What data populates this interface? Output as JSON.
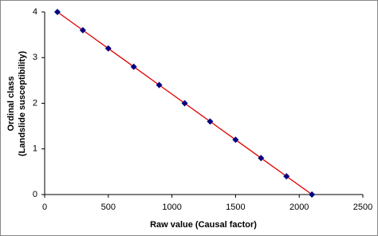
{
  "chart_data": {
    "type": "line",
    "x_label": "Raw value (Causal factor)",
    "y_label": [
      "Ordinal class",
      "(Landslide susceptibility)"
    ],
    "x": [
      100,
      300,
      500,
      700,
      900,
      1100,
      1300,
      1500,
      1700,
      1900,
      2100
    ],
    "values": [
      4,
      3.6,
      3.2,
      2.8,
      2.4,
      2.0,
      1.6,
      1.2,
      0.8,
      0.4,
      0
    ],
    "line_color": "#e00000",
    "marker_color": "#000080",
    "xlim": [
      0,
      2500
    ],
    "xticks": [
      0,
      500,
      1000,
      1500,
      2000,
      2500
    ],
    "ylim": [
      0,
      4
    ],
    "yticks": [
      0,
      1,
      2,
      3,
      4
    ],
    "grid": false
  }
}
